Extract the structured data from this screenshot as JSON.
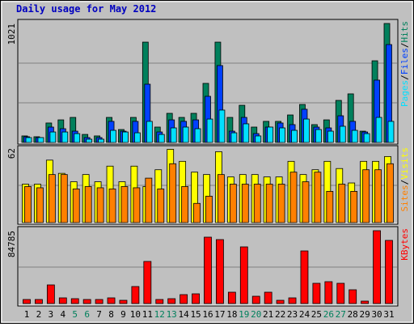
{
  "chart_data": [
    {
      "type": "bar",
      "title": "Daily usage for May 2012",
      "legend_separator": "/",
      "ylim": [
        0,
        1021
      ],
      "yticks": [
        1021
      ],
      "series": [
        {
          "name": "Hits",
          "color": "#00805c",
          "values": [
            56,
            49,
            167,
            194,
            215,
            69,
            56,
            215,
            111,
            215,
            861,
            132,
            250,
            215,
            250,
            507,
            861,
            215,
            319,
            132,
            181,
            181,
            236,
            326,
            153,
            194,
            361,
            417,
            97,
            701,
            1021
          ]
        },
        {
          "name": "Files",
          "color": "#0040ff",
          "values": [
            49,
            42,
            132,
            118,
            97,
            42,
            42,
            181,
            97,
            181,
            500,
            90,
            194,
            181,
            194,
            396,
            660,
            97,
            215,
            76,
            132,
            167,
            153,
            285,
            132,
            125,
            229,
            181,
            90,
            535,
            840
          ]
        },
        {
          "name": "Pages",
          "color": "#00e0ff",
          "values": [
            42,
            42,
            90,
            90,
            76,
            28,
            28,
            104,
            90,
            83,
            181,
            69,
            125,
            132,
            118,
            201,
            278,
            83,
            160,
            56,
            132,
            125,
            104,
            201,
            111,
            97,
            139,
            104,
            76,
            215,
            181
          ]
        }
      ]
    },
    {
      "type": "bar",
      "legend_separator": "/",
      "ylim": [
        0,
        62
      ],
      "yticks": [
        62
      ],
      "series": [
        {
          "name": "Visits",
          "color": "#ffff00",
          "values": [
            32,
            32,
            52,
            41,
            34,
            40,
            34,
            47,
            34,
            47,
            30,
            44,
            61,
            51,
            42,
            40,
            59,
            38,
            40,
            40,
            38,
            38,
            51,
            40,
            44,
            51,
            45,
            33,
            51,
            51,
            55
          ]
        },
        {
          "name": "Sites",
          "color": "#ff8000",
          "values": [
            30,
            29,
            40,
            40,
            28,
            30,
            29,
            28,
            30,
            29,
            37,
            28,
            49,
            30,
            16,
            22,
            40,
            32,
            32,
            32,
            32,
            32,
            42,
            34,
            42,
            26,
            32,
            26,
            44,
            44,
            49
          ]
        }
      ]
    },
    {
      "type": "bar",
      "ylim": [
        0,
        84785
      ],
      "yticks": [
        84785
      ],
      "categories": [
        "1",
        "2",
        "3",
        "4",
        "5",
        "6",
        "7",
        "8",
        "9",
        "10",
        "11",
        "12",
        "13",
        "14",
        "15",
        "16",
        "17",
        "18",
        "19",
        "20",
        "21",
        "22",
        "23",
        "24",
        "25",
        "26",
        "27",
        "28",
        "29",
        "30",
        "31"
      ],
      "category_colors": [
        "#000000",
        "#000000",
        "#000000",
        "#000000",
        "#00805c",
        "#00805c",
        "#000000",
        "#000000",
        "#000000",
        "#000000",
        "#000000",
        "#00805c",
        "#00805c",
        "#000000",
        "#000000",
        "#000000",
        "#000000",
        "#000000",
        "#00805c",
        "#00805c",
        "#000000",
        "#000000",
        "#000000",
        "#000000",
        "#000000",
        "#00805c",
        "#00805c",
        "#000000",
        "#000000",
        "#000000",
        "#000000"
      ],
      "series": [
        {
          "name": "KBytes",
          "color": "#ff0000",
          "values": [
            4710,
            4710,
            21667,
            6594,
            5652,
            4710,
            4710,
            6594,
            3768,
            19784,
            48987,
            4710,
            5652,
            10362,
            11305,
            77249,
            74423,
            13188,
            65943,
            8478,
            13188,
            3768,
            6594,
            61233,
            23551,
            25435,
            23551,
            16015,
            2826,
            84785,
            73481
          ]
        }
      ]
    }
  ]
}
